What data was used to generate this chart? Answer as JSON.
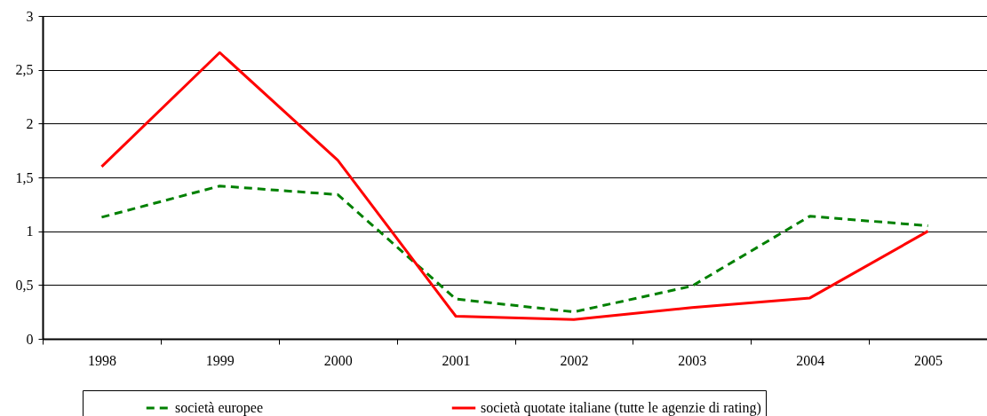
{
  "chart_data": {
    "type": "line",
    "categories": [
      "1998",
      "1999",
      "2000",
      "2001",
      "2002",
      "2003",
      "2004",
      "2005"
    ],
    "series": [
      {
        "name": "società europee",
        "color": "#008000",
        "line_style": "dashed",
        "values": [
          1.13,
          1.42,
          1.34,
          0.37,
          0.25,
          0.49,
          1.14,
          1.05
        ]
      },
      {
        "name": "società quotate italiane (tutte le agenzie di rating)",
        "color": "#ff0000",
        "line_style": "solid",
        "values": [
          1.6,
          2.66,
          1.66,
          0.21,
          0.18,
          0.29,
          0.38,
          1.0
        ]
      }
    ],
    "ylim": [
      0,
      3
    ],
    "yticks": [
      0,
      {
        "value": 0.5,
        "label": "0,5"
      },
      1,
      {
        "value": 1.5,
        "label": "1,5"
      },
      2,
      {
        "value": 2.5,
        "label": "2,5"
      },
      3
    ],
    "grid": "y",
    "legend": "bottom"
  }
}
